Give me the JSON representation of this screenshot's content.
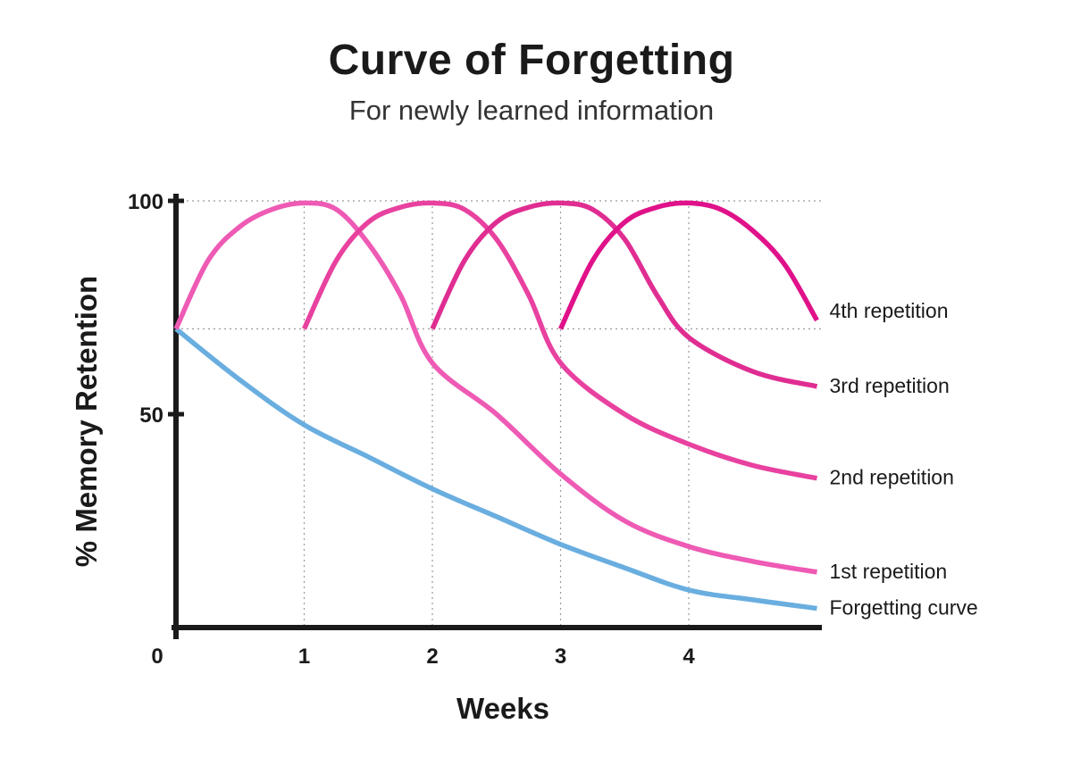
{
  "chart_data": {
    "type": "line",
    "title": "Curve of Forgetting",
    "subtitle": "For newly learned information",
    "xlabel": "Weeks",
    "ylabel": "% Memory Retention",
    "xlim": [
      0,
      5
    ],
    "ylim": [
      0,
      100
    ],
    "x_ticks": [
      "0",
      "1",
      "2",
      "3",
      "4"
    ],
    "y_ticks": [
      "50",
      "100"
    ],
    "grid": "dotted guide lines at x = 1–4 and y = 70, 100",
    "series": [
      {
        "name": "Forgetting curve",
        "color": "#6aaee0",
        "points": [
          [
            0,
            70
          ],
          [
            0.5,
            58
          ],
          [
            1,
            47.5
          ],
          [
            1.5,
            40
          ],
          [
            2,
            32.5
          ],
          [
            2.5,
            26
          ],
          [
            3,
            19.5
          ],
          [
            3.5,
            14
          ],
          [
            4,
            8.8
          ],
          [
            4.5,
            6.5
          ],
          [
            5,
            4.5
          ]
        ]
      },
      {
        "name": "1st repetition",
        "color": "#ee5ab4",
        "points": [
          [
            0,
            70
          ],
          [
            0.25,
            86
          ],
          [
            0.5,
            94
          ],
          [
            0.75,
            98
          ],
          [
            1,
            99.5
          ],
          [
            1.25,
            98
          ],
          [
            1.5,
            90
          ],
          [
            1.75,
            78
          ],
          [
            2,
            62
          ],
          [
            2.5,
            50
          ],
          [
            3,
            36
          ],
          [
            3.5,
            25
          ],
          [
            4,
            19
          ],
          [
            4.5,
            15.5
          ],
          [
            5,
            13
          ]
        ]
      },
      {
        "name": "2nd repetition",
        "color": "#e8419f",
        "points": [
          [
            1,
            70
          ],
          [
            1.25,
            86
          ],
          [
            1.5,
            95
          ],
          [
            1.75,
            98.5
          ],
          [
            2,
            99.5
          ],
          [
            2.25,
            98
          ],
          [
            2.5,
            91
          ],
          [
            2.75,
            78
          ],
          [
            3,
            62
          ],
          [
            3.5,
            50
          ],
          [
            4,
            43
          ],
          [
            4.5,
            38
          ],
          [
            5,
            35
          ]
        ]
      },
      {
        "name": "3rd repetition",
        "color": "#e02d92",
        "points": [
          [
            2,
            70
          ],
          [
            2.25,
            86
          ],
          [
            2.5,
            95
          ],
          [
            2.75,
            98.5
          ],
          [
            3,
            99.5
          ],
          [
            3.25,
            98
          ],
          [
            3.5,
            91
          ],
          [
            3.75,
            78
          ],
          [
            4,
            68
          ],
          [
            4.5,
            60
          ],
          [
            5,
            56.5
          ]
        ]
      },
      {
        "name": "4th repetition",
        "color": "#e0128a",
        "points": [
          [
            3,
            70
          ],
          [
            3.25,
            86
          ],
          [
            3.5,
            95
          ],
          [
            3.75,
            98.5
          ],
          [
            4,
            99.5
          ],
          [
            4.25,
            98
          ],
          [
            4.5,
            93
          ],
          [
            4.75,
            85
          ],
          [
            5,
            72
          ]
        ]
      }
    ]
  }
}
